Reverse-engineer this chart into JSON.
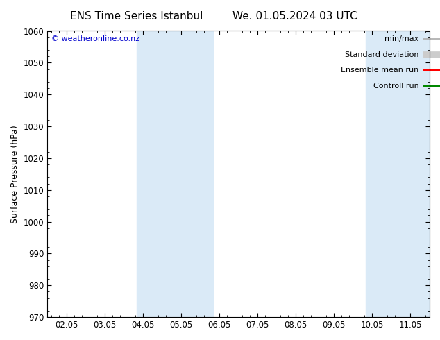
{
  "title_left": "ENS Time Series Istanbul",
  "title_right": "We. 01.05.2024 03 UTC",
  "ylabel": "Surface Pressure (hPa)",
  "ylim": [
    970,
    1060
  ],
  "yticks": [
    970,
    980,
    990,
    1000,
    1010,
    1020,
    1030,
    1040,
    1050,
    1060
  ],
  "xtick_labels": [
    "02.05",
    "03.05",
    "04.05",
    "05.05",
    "06.05",
    "07.05",
    "08.05",
    "09.05",
    "10.05",
    "11.05"
  ],
  "xtick_positions": [
    0,
    1,
    2,
    3,
    4,
    5,
    6,
    7,
    8,
    9
  ],
  "xlim": [
    -0.5,
    9.5
  ],
  "shaded_bands": [
    {
      "x_start": 1.83,
      "x_end": 3.83
    },
    {
      "x_start": 7.83,
      "x_end": 9.5
    }
  ],
  "shade_color": "#daeaf7",
  "watermark": "© weatheronline.co.nz",
  "watermark_color": "#0000cc",
  "legend_labels": [
    "min/max",
    "Standard deviation",
    "Ensemble mean run",
    "Controll run"
  ],
  "legend_colors": [
    "#aaaaaa",
    "#cccccc",
    "#ff0000",
    "#008800"
  ],
  "background_color": "#ffffff",
  "plot_bg_color": "#ffffff",
  "border_color": "#000000",
  "tick_color": "#000000",
  "font_size_title": 11,
  "font_size_axis": 9,
  "font_size_tick": 8.5,
  "font_size_legend": 8,
  "font_size_watermark": 8
}
